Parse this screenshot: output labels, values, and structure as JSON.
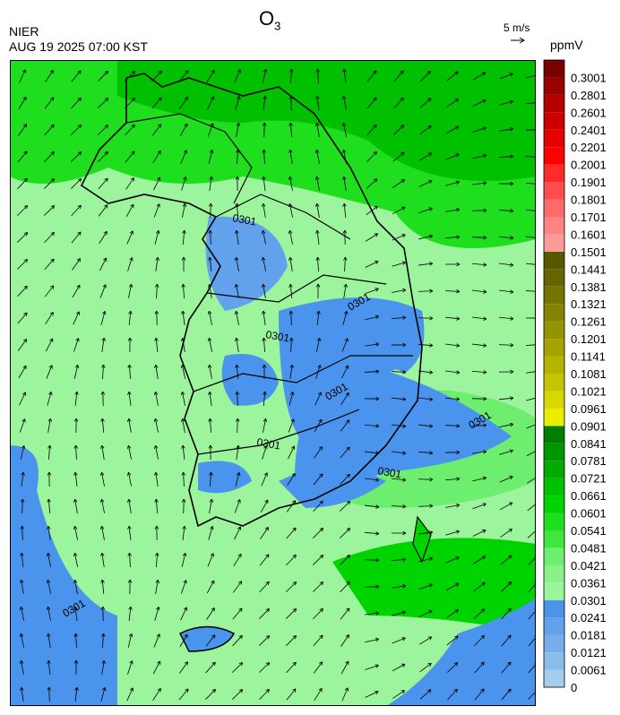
{
  "header": {
    "title": {
      "main": "O",
      "subscript": "3"
    },
    "agency": "NIER",
    "datetime": "AUG 19 2025 07:00 KST",
    "wind_scale": "5 m/s"
  },
  "map": {
    "contour_labels": [
      "0301",
      "0301",
      "0301",
      "0301",
      "0301",
      "0301",
      "0301",
      "0301"
    ]
  },
  "colorbar": {
    "unit": "ppmV",
    "levels": [
      0,
      0.0061,
      0.0121,
      0.0181,
      0.0241,
      0.0301,
      0.0361,
      0.0421,
      0.0481,
      0.0541,
      0.0601,
      0.0661,
      0.0721,
      0.0781,
      0.0841,
      0.0901,
      0.0961,
      0.1021,
      0.1081,
      0.1141,
      0.1201,
      0.1261,
      0.1321,
      0.1381,
      0.1441,
      0.1501,
      0.1601,
      0.1701,
      0.1801,
      0.1901,
      0.2001,
      0.2201,
      0.2401,
      0.2601,
      0.2801,
      0.3001
    ],
    "colors": [
      "#a3cdea",
      "#8cbcea",
      "#77aeea",
      "#62a2ec",
      "#4b94ee",
      "#9cf59c",
      "#88f288",
      "#6eee6e",
      "#3ee63e",
      "#1ede1e",
      "#00d400",
      "#00c000",
      "#00aa00",
      "#009600",
      "#007e00",
      "#ecec00",
      "#d8d800",
      "#c4c400",
      "#b4b400",
      "#a4a400",
      "#949400",
      "#848400",
      "#747400",
      "#666600",
      "#585800",
      "#ff9a9a",
      "#ff8484",
      "#ff6a6a",
      "#ff4c4c",
      "#ff2a2a",
      "#ff0000",
      "#e60000",
      "#cc0000",
      "#b40000",
      "#9a0000",
      "#780000"
    ]
  }
}
